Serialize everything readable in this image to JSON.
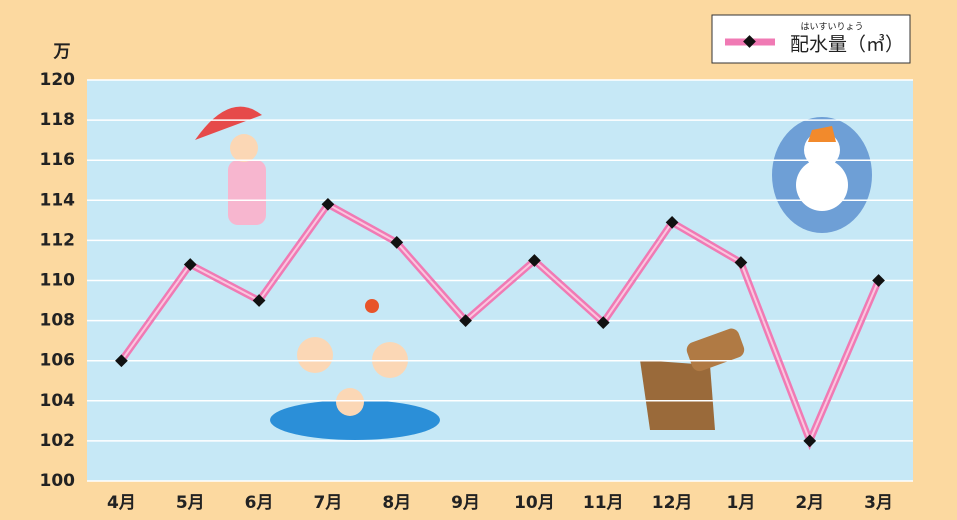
{
  "chart_data": {
    "type": "line",
    "y_unit": "万",
    "legend_reading": "はいすいりょう",
    "categories": [
      "4月",
      "5月",
      "6月",
      "7月",
      "8月",
      "9月",
      "10月",
      "11月",
      "12月",
      "1月",
      "2月",
      "3月"
    ],
    "series": [
      {
        "name": "配水量（㎥）",
        "color": "#f07ab4",
        "values": [
          106,
          110.8,
          109,
          113.8,
          111.9,
          108,
          111,
          107.9,
          112.9,
          110.9,
          102,
          110
        ]
      }
    ],
    "ylim": [
      100,
      120
    ],
    "yticks": [
      100,
      102,
      104,
      106,
      108,
      110,
      112,
      114,
      116,
      118,
      120
    ],
    "grid": true,
    "legend": "top-right"
  }
}
